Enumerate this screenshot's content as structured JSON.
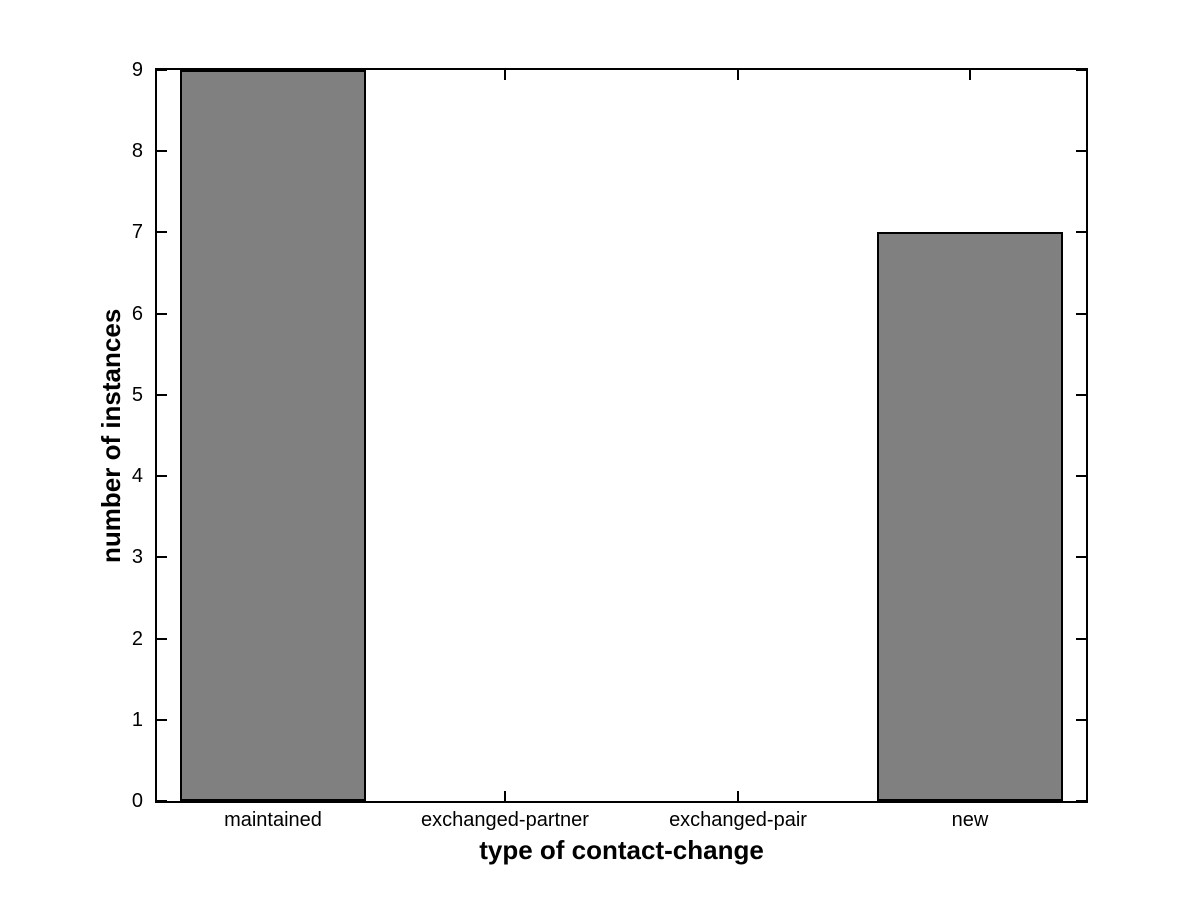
{
  "figure": {
    "background_color": "#ffffff",
    "bar_fill_color": "#808080",
    "bar_edge_color": "#000000",
    "axis_color": "#000000",
    "text_color": "#000000"
  },
  "chart_data": {
    "type": "bar",
    "categories": [
      "maintained",
      "exchanged-partner",
      "exchanged-pair",
      "new"
    ],
    "values": [
      9,
      0,
      0,
      7
    ],
    "title": "",
    "xlabel": "type of contact-change",
    "ylabel": "number of instances",
    "ylim": [
      0,
      9
    ],
    "yticks": [
      0,
      1,
      2,
      3,
      4,
      5,
      6,
      7,
      8,
      9
    ],
    "bar_width_fraction": 0.8,
    "grid": false,
    "legend": null,
    "box": true,
    "tick_direction": "in"
  }
}
